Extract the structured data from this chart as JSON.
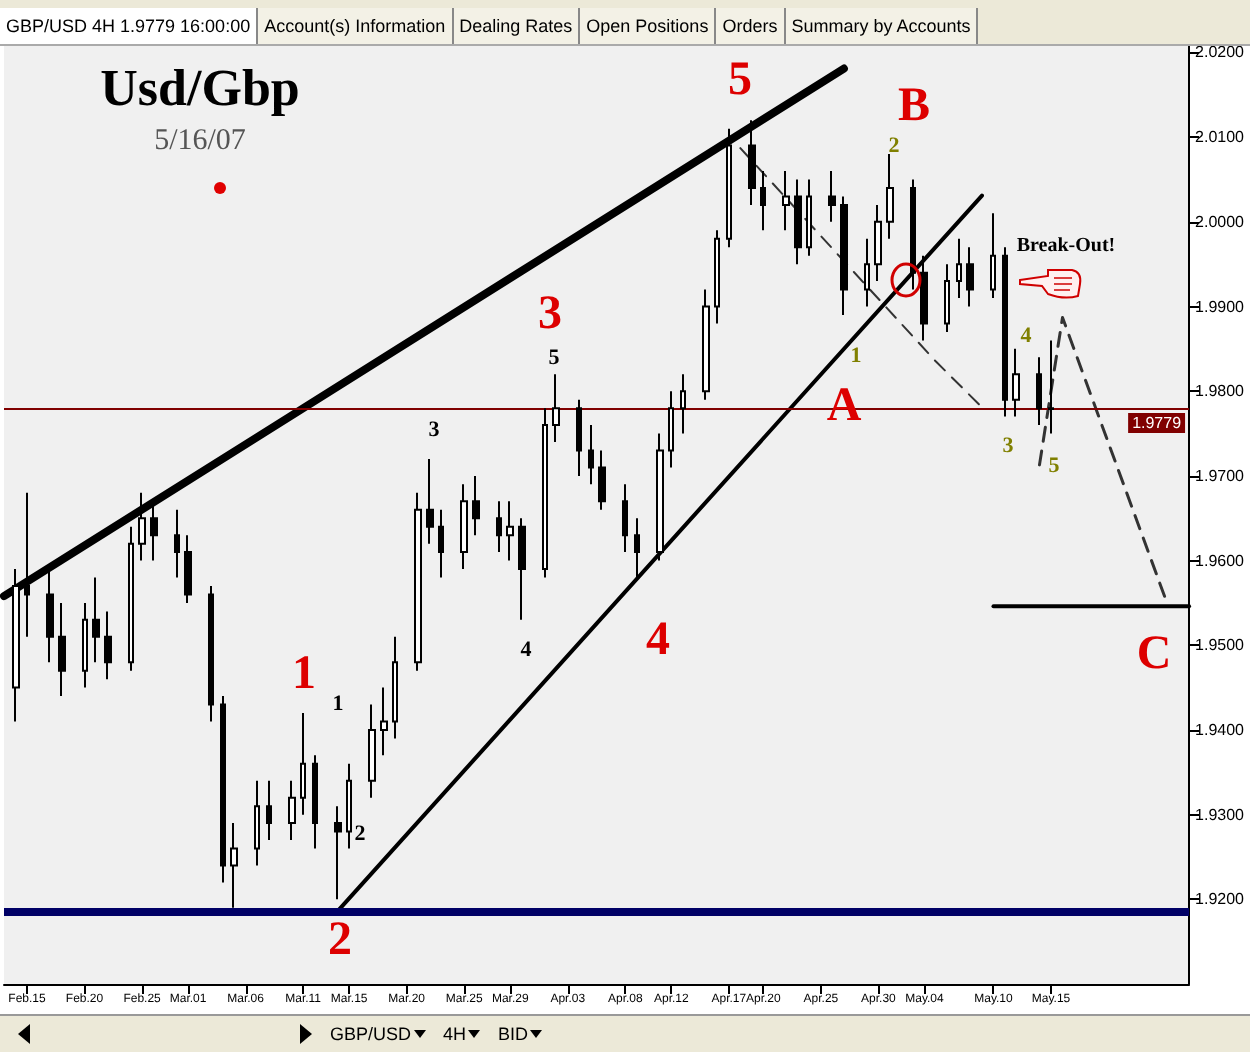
{
  "chart_data": {
    "type": "candlestick",
    "title": "Usd/Gbp",
    "subtitle": "5/16/07",
    "color": "#000000",
    "marker": "none",
    "x": [
      "--02-14",
      "--02-15",
      "--02-17",
      "--02-18",
      "--02-20",
      "--02-21",
      "--02-22",
      "--02-24",
      "--02-25",
      "--02-26",
      "--02-28",
      "--03-01",
      "--03-03",
      "--03-04",
      "--03-05",
      "--03-07",
      "--03-08",
      "--03-10",
      "--03-11",
      "--03-12",
      "--03-14",
      "--03-15",
      "--03-17",
      "--03-18",
      "--03-19",
      "--03-21",
      "--03-22",
      "--03-23",
      "--03-25",
      "--03-26",
      "--03-28",
      "--03-29",
      "--03-30",
      "--04-01",
      "--04-02",
      "--04-04",
      "--04-05",
      "--04-06",
      "--04-08",
      "--04-09",
      "--04-11",
      "--04-12",
      "--04-13",
      "--04-15",
      "--04-16",
      "--04-17",
      "--04-19",
      "--04-20",
      "--04-22",
      "--04-23",
      "--04-24",
      "--04-26",
      "--04-27",
      "--04-29",
      "--04-30",
      "--05-01",
      "--05-03",
      "--05-04",
      "--05-06",
      "--05-07",
      "--05-08",
      "--05-10",
      "--05-11",
      "--05-12",
      "--05-14",
      "--05-15"
    ],
    "ohlc": [
      [
        1.945,
        1.959,
        1.941,
        1.957
      ],
      [
        1.957,
        1.968,
        1.951,
        1.956
      ],
      [
        1.956,
        1.959,
        1.948,
        1.951
      ],
      [
        1.951,
        1.955,
        1.944,
        1.947
      ],
      [
        1.947,
        1.955,
        1.945,
        1.953
      ],
      [
        1.953,
        1.958,
        1.948,
        1.951
      ],
      [
        1.951,
        1.954,
        1.946,
        1.948
      ],
      [
        1.948,
        1.964,
        1.947,
        1.962
      ],
      [
        1.962,
        1.968,
        1.96,
        1.965
      ],
      [
        1.965,
        1.967,
        1.96,
        1.963
      ],
      [
        1.963,
        1.966,
        1.958,
        1.961
      ],
      [
        1.961,
        1.963,
        1.955,
        1.956
      ],
      [
        1.956,
        1.957,
        1.941,
        1.943
      ],
      [
        1.943,
        1.944,
        1.922,
        1.924
      ],
      [
        1.924,
        1.929,
        1.919,
        1.926
      ],
      [
        1.926,
        1.934,
        1.924,
        1.931
      ],
      [
        1.931,
        1.934,
        1.927,
        1.929
      ],
      [
        1.929,
        1.934,
        1.927,
        1.932
      ],
      [
        1.932,
        1.942,
        1.93,
        1.936
      ],
      [
        1.936,
        1.937,
        1.926,
        1.929
      ],
      [
        1.929,
        1.931,
        1.92,
        1.928
      ],
      [
        1.928,
        1.936,
        1.926,
        1.934
      ],
      [
        1.934,
        1.943,
        1.932,
        1.94
      ],
      [
        1.94,
        1.945,
        1.937,
        1.941
      ],
      [
        1.941,
        1.951,
        1.939,
        1.948
      ],
      [
        1.948,
        1.968,
        1.947,
        1.966
      ],
      [
        1.966,
        1.972,
        1.962,
        1.964
      ],
      [
        1.964,
        1.966,
        1.958,
        1.961
      ],
      [
        1.961,
        1.969,
        1.959,
        1.967
      ],
      [
        1.967,
        1.97,
        1.963,
        1.965
      ],
      [
        1.965,
        1.967,
        1.961,
        1.963
      ],
      [
        1.963,
        1.967,
        1.96,
        1.964
      ],
      [
        1.964,
        1.965,
        1.953,
        1.959
      ],
      [
        1.959,
        1.978,
        1.958,
        1.976
      ],
      [
        1.976,
        1.982,
        1.974,
        1.978
      ],
      [
        1.978,
        1.979,
        1.97,
        1.973
      ],
      [
        1.973,
        1.976,
        1.969,
        1.971
      ],
      [
        1.971,
        1.973,
        1.966,
        1.967
      ],
      [
        1.967,
        1.969,
        1.961,
        1.963
      ],
      [
        1.963,
        1.965,
        1.958,
        1.961
      ],
      [
        1.961,
        1.975,
        1.96,
        1.973
      ],
      [
        1.973,
        1.98,
        1.971,
        1.978
      ],
      [
        1.978,
        1.982,
        1.975,
        1.98
      ],
      [
        1.98,
        1.992,
        1.979,
        1.99
      ],
      [
        1.99,
        1.999,
        1.988,
        1.998
      ],
      [
        1.998,
        2.011,
        1.997,
        2.009
      ],
      [
        2.009,
        2.012,
        2.002,
        2.004
      ],
      [
        2.004,
        2.006,
        1.999,
        2.002
      ],
      [
        2.002,
        2.006,
        1.999,
        2.003
      ],
      [
        2.003,
        2.005,
        1.995,
        1.997
      ],
      [
        1.997,
        2.005,
        1.996,
        2.003
      ],
      [
        2.003,
        2.006,
        2.0,
        2.002
      ],
      [
        2.002,
        2.003,
        1.989,
        1.992
      ],
      [
        1.992,
        1.998,
        1.99,
        1.995
      ],
      [
        1.995,
        2.002,
        1.993,
        2.0
      ],
      [
        2.0,
        2.008,
        1.998,
        2.004
      ],
      [
        2.004,
        2.005,
        1.992,
        1.994
      ],
      [
        1.994,
        1.996,
        1.986,
        1.988
      ],
      [
        1.988,
        1.995,
        1.987,
        1.993
      ],
      [
        1.993,
        1.998,
        1.991,
        1.995
      ],
      [
        1.995,
        1.997,
        1.99,
        1.992
      ],
      [
        1.992,
        2.001,
        1.991,
        1.996
      ],
      [
        1.996,
        1.997,
        1.977,
        1.979
      ],
      [
        1.979,
        1.985,
        1.977,
        1.982
      ],
      [
        1.982,
        1.984,
        1.976,
        1.978
      ],
      [
        1.978,
        1.986,
        1.975,
        1.9779
      ]
    ],
    "series": [
      {
        "type": "line",
        "color": "#000000",
        "line_style": "solid",
        "x": [
          "--02-13",
          "--04-27"
        ],
        "values": [
          1.9558,
          2.0181
        ]
      },
      {
        "type": "line",
        "color": "#000000",
        "line_style": "solid",
        "x": [
          "--03-14",
          "--05-09"
        ],
        "values": [
          1.9186,
          2.0031
        ]
      },
      {
        "type": "line",
        "color": "#333333",
        "line_style": "dashed",
        "x": [
          "--04-18",
          "--05-05",
          "--05-09"
        ],
        "values": [
          2.0087,
          1.9835,
          1.9781
        ]
      },
      {
        "type": "line",
        "color": "#333333",
        "line_style": "dashed",
        "x": [
          "--05-14",
          "--05-16",
          "--05-25"
        ],
        "values": [
          1.9713,
          1.9887,
          1.9553
        ]
      },
      {
        "type": "line",
        "color": "#000000",
        "line_style": "solid",
        "x": [
          "--05-10",
          "--05-27"
        ],
        "values": [
          1.9546,
          1.9546
        ]
      }
    ],
    "ref_lines": [
      {
        "axis": "y",
        "value": 1.9186,
        "color": "#000066"
      },
      {
        "axis": "y",
        "value": 1.9779,
        "label": "1.9779",
        "color": "#800000"
      }
    ],
    "xlim": [
      "--02-13",
      "--05-27"
    ],
    "xticks": [
      {
        "value": "--02-15",
        "label": "Feb.15"
      },
      {
        "value": "--02-20",
        "label": "Feb.20"
      },
      {
        "value": "--02-25",
        "label": "Feb.25"
      },
      {
        "value": "--03-01",
        "label": "Mar.01"
      },
      {
        "value": "--03-06",
        "label": "Mar.06"
      },
      {
        "value": "--03-11",
        "label": "Mar.11"
      },
      {
        "value": "--03-15",
        "label": "Mar.15"
      },
      {
        "value": "--03-20",
        "label": "Mar.20"
      },
      {
        "value": "--03-25",
        "label": "Mar.25"
      },
      {
        "value": "--03-29",
        "label": "Mar.29"
      },
      {
        "value": "--04-03",
        "label": "Apr.03"
      },
      {
        "value": "--04-08",
        "label": "Apr.08"
      },
      {
        "value": "--04-12",
        "label": "Apr.12"
      },
      {
        "value": "--04-17",
        "label": "Apr.17"
      },
      {
        "value": "--04-20",
        "label": "Apr.20"
      },
      {
        "value": "--04-25",
        "label": "Apr.25"
      },
      {
        "value": "--04-30",
        "label": "Apr.30"
      },
      {
        "value": "--05-04",
        "label": "May.04"
      },
      {
        "value": "--05-10",
        "label": "May.10"
      },
      {
        "value": "--05-15",
        "label": "May.15"
      }
    ],
    "ylim": [
      1.91,
      2.021
    ],
    "yticks": [
      {
        "value": 1.92,
        "label": "1.9200"
      },
      {
        "value": 1.93,
        "label": "1.9300"
      },
      {
        "value": 1.94,
        "label": "1.9400"
      },
      {
        "value": 1.95,
        "label": "1.9500"
      },
      {
        "value": 1.96,
        "label": "1.9600"
      },
      {
        "value": 1.97,
        "label": "1.9700"
      },
      {
        "value": 1.98,
        "label": "1.9800"
      },
      {
        "value": 1.99,
        "label": "1.9900"
      },
      {
        "value": 2.0,
        "label": "2.0000"
      },
      {
        "value": 2.01,
        "label": "2.0100"
      },
      {
        "value": 2.02,
        "label": "2.0200"
      }
    ],
    "annotations": [
      "GBP/USD 4H 1.9779 16:00:00",
      "Account(s) Information",
      "Dealing Rates",
      "Open Positions",
      "Orders",
      "Summary by Accounts",
      "GBP/USD",
      "4H",
      "BID",
      "1",
      "2",
      "3",
      "4",
      "5",
      "A",
      "B",
      "C",
      "1",
      "2",
      "3",
      "4",
      "5",
      "1",
      "2",
      "3",
      "4",
      "5",
      "Break-Out!"
    ]
  }
}
